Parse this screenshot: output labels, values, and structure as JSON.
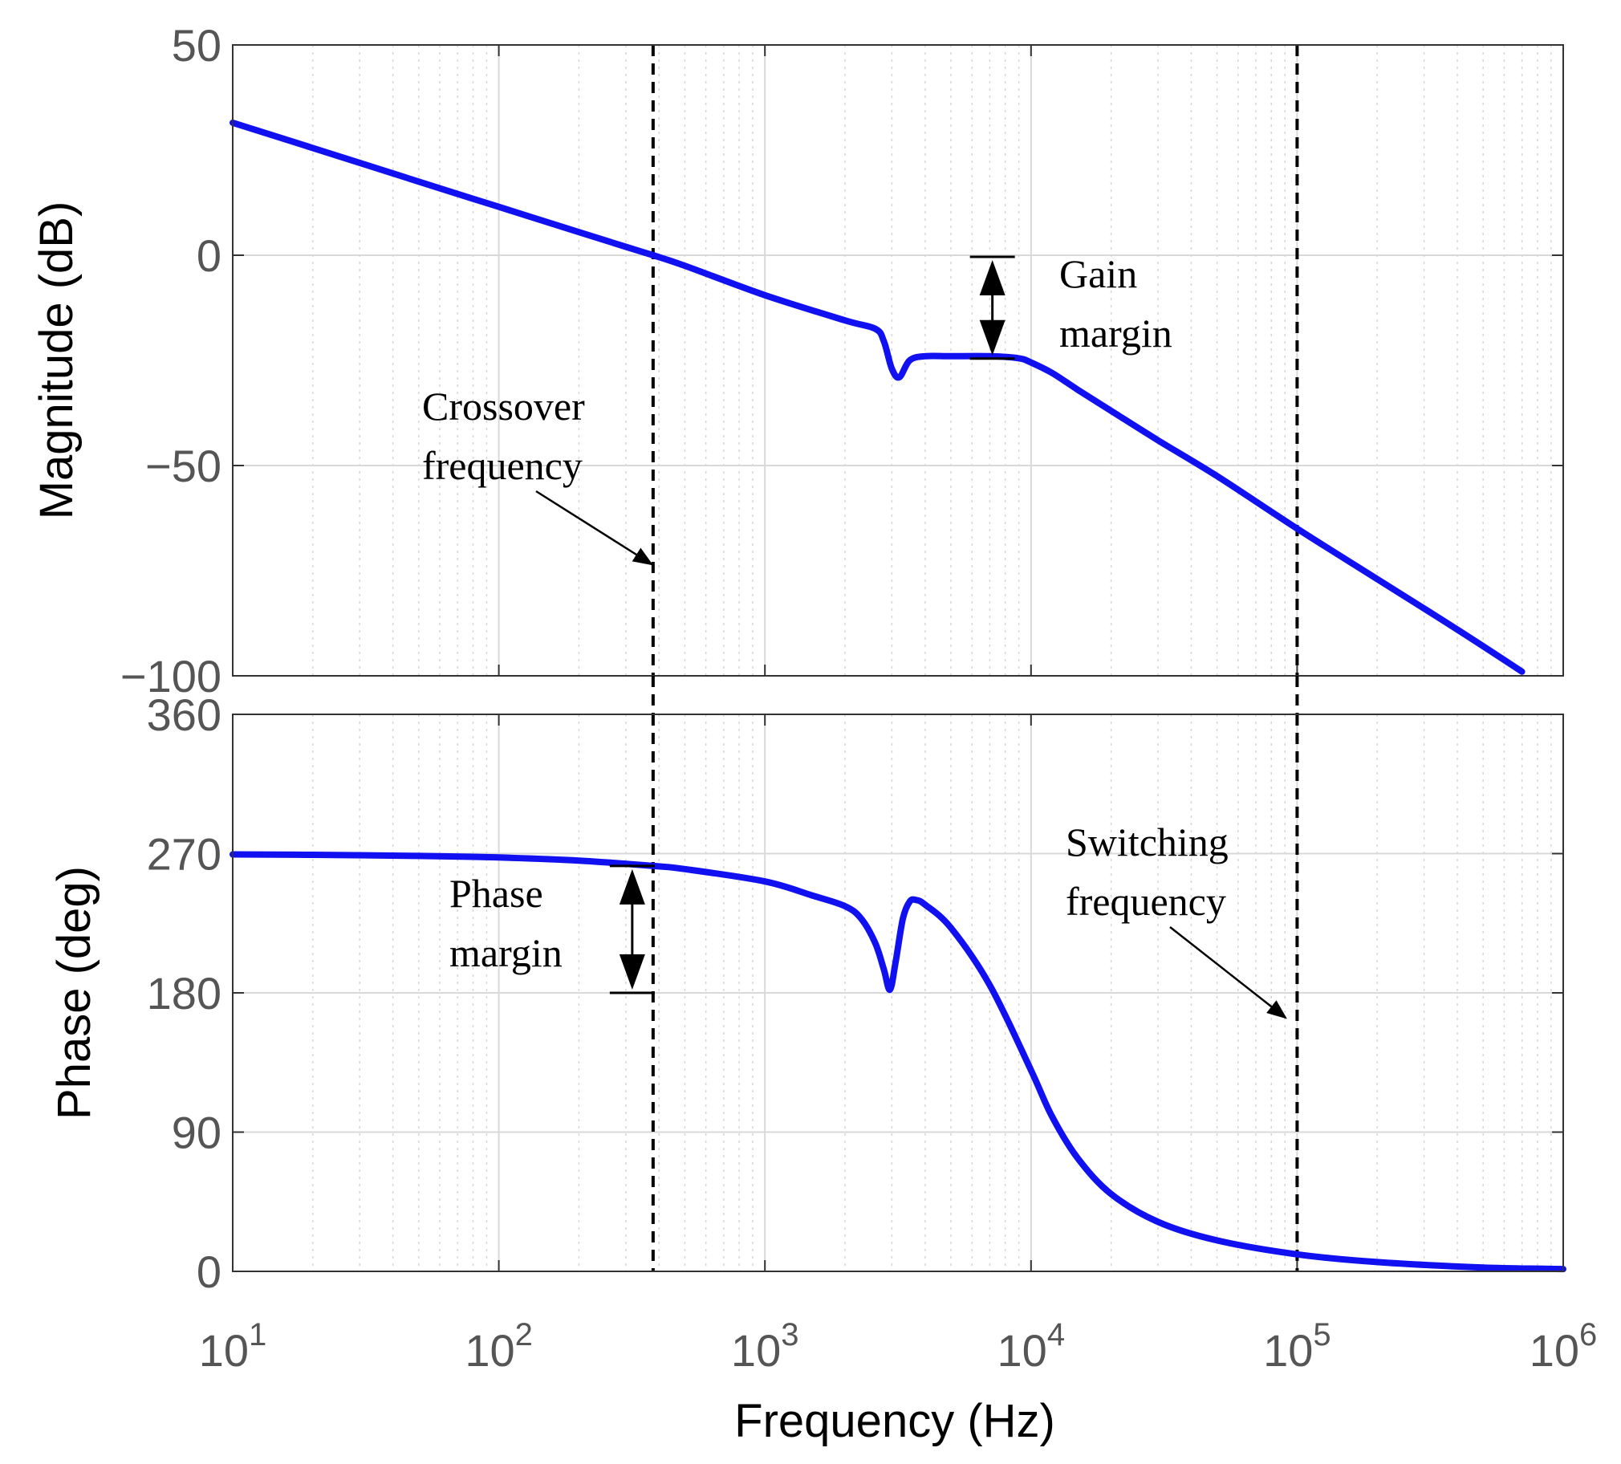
{
  "chart_data": [
    {
      "panel": "magnitude",
      "type": "line",
      "ylabel": "Magnitude (dB)",
      "xscale": "log",
      "xlim": [
        10,
        1000000
      ],
      "ylim": [
        -100,
        50
      ],
      "yticks": [
        50,
        0,
        -50,
        -100
      ],
      "ytick_labels": [
        "50",
        "0",
        "−50",
        "−100"
      ],
      "grid": true,
      "series": [
        {
          "color": "#1010f0",
          "x": [
            10,
            20,
            50,
            100,
            200,
            300,
            380,
            500,
            1000,
            2000,
            2600,
            2800,
            3000,
            3200,
            3500,
            4000,
            5000,
            7000,
            9000,
            10000,
            12000,
            15000,
            20000,
            30000,
            50000,
            100000,
            200000,
            400000,
            700000
          ],
          "y": [
            31.5,
            25.5,
            17.5,
            11.5,
            5.5,
            2.0,
            0.0,
            -2.5,
            -9.5,
            -15.5,
            -17.5,
            -20.5,
            -27.0,
            -29.0,
            -25.0,
            -24.0,
            -24.0,
            -24.0,
            -24.5,
            -25.5,
            -28.0,
            -32.0,
            -37.0,
            -44.0,
            -52.5,
            -65.0,
            -77.0,
            -89.0,
            -99.0
          ]
        }
      ],
      "annotations": [
        {
          "text_lines": [
            "Gain",
            "margin"
          ],
          "from_y": 0,
          "to_y": -24,
          "at_x": 8000
        },
        {
          "text_lines": [
            "Crossover",
            "frequency"
          ],
          "points_to_x": 380
        }
      ],
      "vlines": [
        380,
        100000
      ]
    },
    {
      "panel": "phase",
      "type": "line",
      "xlabel": "Frequency  (Hz)",
      "ylabel": "Phase (deg)",
      "xscale": "log",
      "xlim": [
        10,
        1000000
      ],
      "ylim": [
        0,
        360
      ],
      "yticks": [
        360,
        270,
        180,
        90,
        0
      ],
      "ytick_labels": [
        "360",
        "270",
        "180",
        "90",
        "0"
      ],
      "xticks": [
        10,
        100,
        1000,
        10000,
        100000,
        1000000
      ],
      "xtick_exponents": [
        "1",
        "2",
        "3",
        "4",
        "5",
        "6"
      ],
      "grid": true,
      "series": [
        {
          "color": "#1010f0",
          "x": [
            10,
            20,
            50,
            100,
            200,
            380,
            500,
            1000,
            1500,
            2000,
            2300,
            2600,
            2800,
            2950,
            3100,
            3300,
            3500,
            3700,
            4000,
            5000,
            7000,
            10000,
            12000,
            15000,
            20000,
            30000,
            50000,
            100000,
            200000,
            500000,
            1000000
          ],
          "y": [
            269.5,
            269.2,
            268.5,
            267.5,
            265.5,
            262,
            260,
            252,
            243,
            236,
            228,
            212,
            195,
            182,
            200,
            228,
            239,
            240,
            237,
            222,
            185,
            130,
            100,
            73,
            50,
            32,
            20,
            11,
            6,
            2.5,
            1.5
          ]
        }
      ],
      "annotations": [
        {
          "text_lines": [
            "Phase",
            "margin"
          ],
          "from_y": 262,
          "to_y": 180,
          "at_x": 380
        },
        {
          "text_lines": [
            "Switching",
            "frequency"
          ],
          "points_to_x": 100000
        }
      ],
      "vlines": [
        380,
        100000
      ]
    }
  ]
}
